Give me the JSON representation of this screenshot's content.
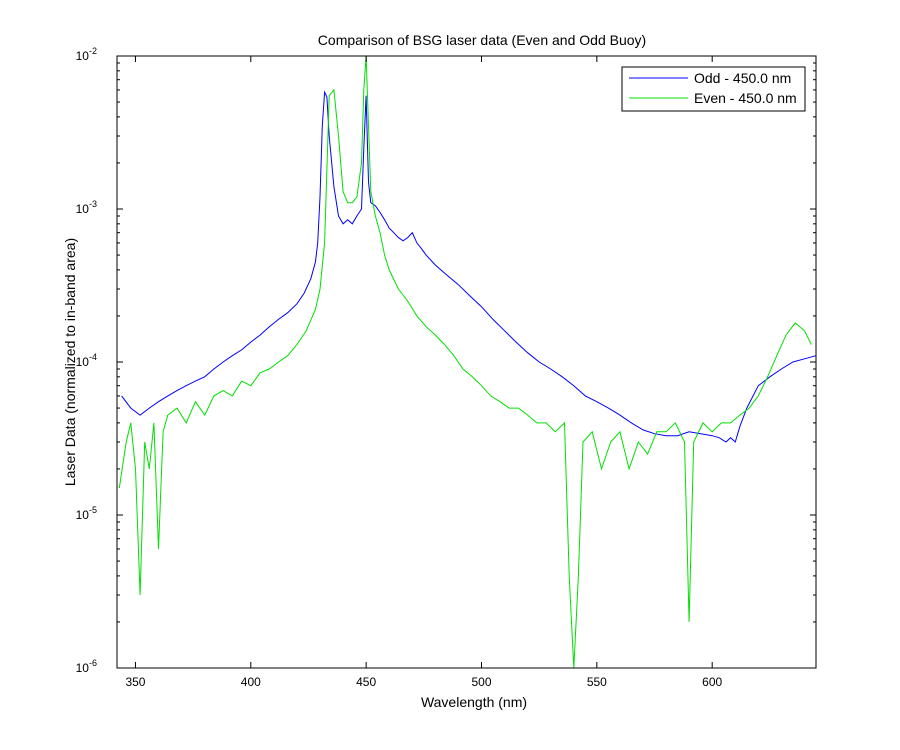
{
  "chart_data": {
    "type": "line",
    "title": "Comparison of BSG laser data (Even and Odd Buoy)",
    "xlabel": "Wavelength (nm)",
    "ylabel": "Laser Data (normalized to in-band area)",
    "xlim": [
      342,
      645
    ],
    "ylim": [
      1e-06,
      0.01
    ],
    "yscale": "log",
    "xticks": [
      350,
      400,
      450,
      500,
      550,
      600
    ],
    "yticks": [
      {
        "value": 1e-06,
        "base": "10",
        "exp": "-6"
      },
      {
        "value": 1e-05,
        "base": "10",
        "exp": "-5"
      },
      {
        "value": 0.0001,
        "base": "10",
        "exp": "-4"
      },
      {
        "value": 0.001,
        "base": "10",
        "exp": "-3"
      },
      {
        "value": 0.01,
        "base": "10",
        "exp": "-2"
      }
    ],
    "grid": false,
    "legend_position": "top-right",
    "series": [
      {
        "name": "Odd - 450.0 nm",
        "color": "#0000ff",
        "x": [
          344,
          348,
          352,
          356,
          360,
          364,
          368,
          372,
          376,
          380,
          384,
          388,
          392,
          396,
          400,
          404,
          408,
          412,
          416,
          420,
          423,
          426,
          428,
          429,
          430,
          431,
          432,
          433,
          434,
          436,
          438,
          440,
          442,
          444,
          446,
          448,
          449,
          450,
          451,
          452,
          454,
          456,
          458,
          460,
          462,
          464,
          466,
          468,
          470,
          472,
          474,
          476,
          480,
          485,
          490,
          495,
          500,
          505,
          510,
          515,
          520,
          525,
          530,
          535,
          540,
          545,
          550,
          555,
          560,
          565,
          570,
          575,
          580,
          585,
          590,
          595,
          600,
          603,
          606,
          608,
          610,
          612,
          615,
          620,
          625,
          630,
          635,
          640,
          645
        ],
        "y": [
          6e-05,
          5e-05,
          4.5e-05,
          5e-05,
          5.5e-05,
          6e-05,
          6.5e-05,
          7e-05,
          7.5e-05,
          8e-05,
          9e-05,
          0.0001,
          0.00011,
          0.00012,
          0.000135,
          0.00015,
          0.00017,
          0.00019,
          0.00021,
          0.00024,
          0.00028,
          0.00035,
          0.00045,
          0.0006,
          0.0012,
          0.0035,
          0.0058,
          0.0054,
          0.003,
          0.0014,
          0.0009,
          0.0008,
          0.00085,
          0.0008,
          0.0009,
          0.001,
          0.0025,
          0.0055,
          0.0015,
          0.0011,
          0.00105,
          0.00095,
          0.00085,
          0.00075,
          0.0007,
          0.00065,
          0.00062,
          0.00065,
          0.0007,
          0.0006,
          0.00055,
          0.0005,
          0.00043,
          0.00037,
          0.00032,
          0.00027,
          0.00023,
          0.00019,
          0.00016,
          0.000135,
          0.000115,
          0.0001,
          9e-05,
          8e-05,
          7e-05,
          6e-05,
          5.5e-05,
          5e-05,
          4.5e-05,
          4e-05,
          3.6e-05,
          3.4e-05,
          3.3e-05,
          3.3e-05,
          3.5e-05,
          3.4e-05,
          3.3e-05,
          3.2e-05,
          3e-05,
          3.2e-05,
          3e-05,
          3.8e-05,
          5e-05,
          7e-05,
          8e-05,
          9e-05,
          0.0001,
          0.000105,
          0.00011
        ]
      },
      {
        "name": "Even - 450.0 nm",
        "color": "#00e000",
        "x": [
          343,
          346,
          348,
          350,
          352,
          354,
          356,
          358,
          360,
          362,
          364,
          368,
          372,
          376,
          380,
          384,
          388,
          392,
          396,
          400,
          404,
          408,
          412,
          416,
          420,
          424,
          428,
          430,
          432,
          434,
          436,
          438,
          440,
          442,
          444,
          446,
          448,
          449,
          450,
          451,
          452,
          454,
          456,
          458,
          460,
          464,
          468,
          472,
          476,
          480,
          484,
          488,
          492,
          496,
          500,
          504,
          508,
          512,
          516,
          520,
          524,
          528,
          532,
          536,
          538,
          540,
          542,
          544,
          548,
          552,
          556,
          560,
          564,
          568,
          572,
          576,
          580,
          584,
          588,
          590,
          592,
          596,
          600,
          604,
          608,
          612,
          616,
          620,
          624,
          628,
          632,
          636,
          640,
          643
        ],
        "y": [
          1.5e-05,
          3e-05,
          4e-05,
          2e-05,
          3e-06,
          3e-05,
          2e-05,
          4e-05,
          6e-06,
          3.5e-05,
          4.5e-05,
          5e-05,
          4e-05,
          5.5e-05,
          4.5e-05,
          6e-05,
          6.5e-05,
          6e-05,
          7.5e-05,
          7e-05,
          8.5e-05,
          9e-05,
          0.0001,
          0.00011,
          0.00013,
          0.00016,
          0.00022,
          0.0003,
          0.0006,
          0.0055,
          0.006,
          0.003,
          0.0013,
          0.0011,
          0.0011,
          0.0012,
          0.002,
          0.006,
          0.01,
          0.0035,
          0.0013,
          0.0009,
          0.0007,
          0.0005,
          0.0004,
          0.0003,
          0.00025,
          0.0002,
          0.00017,
          0.00015,
          0.00013,
          0.00011,
          9e-05,
          8e-05,
          7e-05,
          6e-05,
          5.5e-05,
          5e-05,
          5e-05,
          4.5e-05,
          4e-05,
          4e-05,
          3.5e-05,
          4e-05,
          4e-06,
          1e-06,
          4e-06,
          3e-05,
          3.5e-05,
          2e-05,
          3e-05,
          3.5e-05,
          2e-05,
          3e-05,
          2.5e-05,
          3.5e-05,
          3.5e-05,
          4e-05,
          3e-05,
          2e-06,
          3e-05,
          4e-05,
          3.5e-05,
          4e-05,
          4e-05,
          4.5e-05,
          5e-05,
          6e-05,
          8e-05,
          0.00011,
          0.00015,
          0.00018,
          0.00016,
          0.00013
        ]
      }
    ]
  }
}
